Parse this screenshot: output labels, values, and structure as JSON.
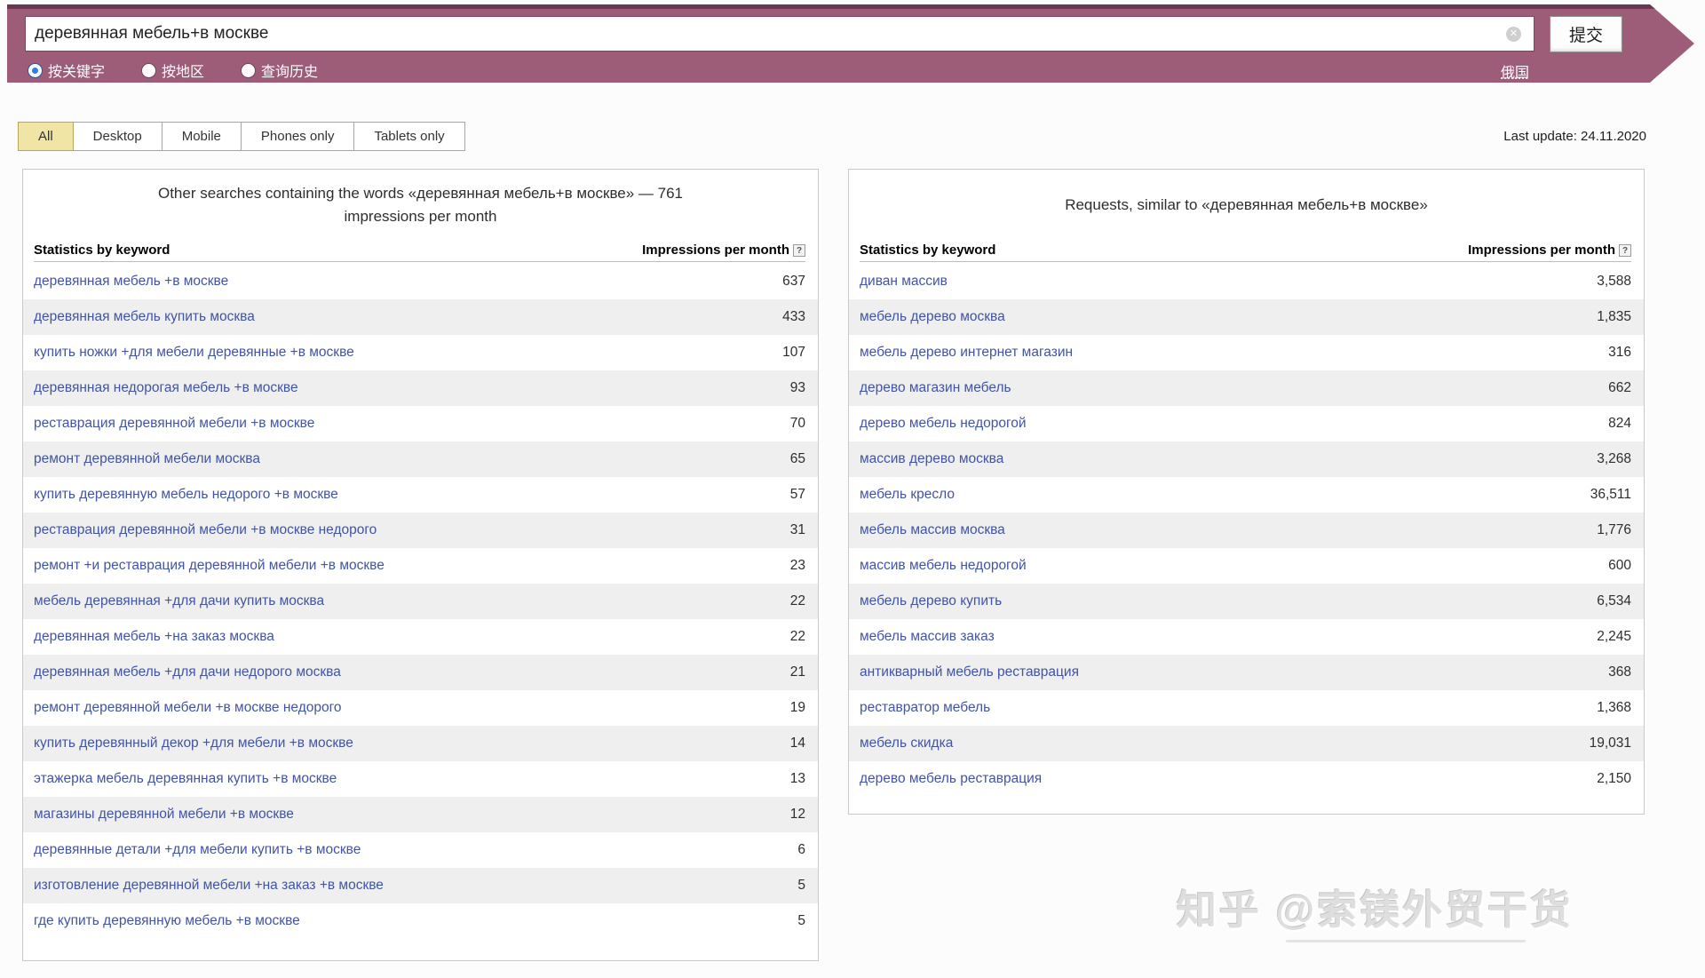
{
  "search": {
    "query": "деревянная мебель+в москве",
    "submit_label": "提交",
    "region_link": "俄国",
    "clear_icon": "✕",
    "modes": [
      {
        "label": "按关键字",
        "selected": true
      },
      {
        "label": "按地区",
        "selected": false
      },
      {
        "label": "查询历史",
        "selected": false
      }
    ]
  },
  "tabs": [
    {
      "label": "All",
      "selected": true
    },
    {
      "label": "Desktop",
      "selected": false
    },
    {
      "label": "Mobile",
      "selected": false
    },
    {
      "label": "Phones only",
      "selected": false
    },
    {
      "label": "Tablets only",
      "selected": false
    }
  ],
  "last_update": "Last update: 24.11.2020",
  "help_icon": "?",
  "left_table": {
    "title": "Other searches containing the words «деревянная мебель+в москве» — 761 impressions per month",
    "col_keyword": "Statistics by keyword",
    "col_impressions": "Impressions per month",
    "rows": [
      {
        "keyword": "деревянная мебель +в москве",
        "impressions": "637"
      },
      {
        "keyword": "деревянная мебель купить москва",
        "impressions": "433"
      },
      {
        "keyword": "купить ножки +для мебели деревянные +в москве",
        "impressions": "107"
      },
      {
        "keyword": "деревянная недорогая мебель +в москве",
        "impressions": "93"
      },
      {
        "keyword": "реставрация деревянной мебели +в москве",
        "impressions": "70"
      },
      {
        "keyword": "ремонт деревянной мебели москва",
        "impressions": "65"
      },
      {
        "keyword": "купить деревянную мебель недорого +в москве",
        "impressions": "57"
      },
      {
        "keyword": "реставрация деревянной мебели +в москве недорого",
        "impressions": "31"
      },
      {
        "keyword": "ремонт +и реставрация деревянной мебели +в москве",
        "impressions": "23"
      },
      {
        "keyword": "мебель деревянная +для дачи купить москва",
        "impressions": "22"
      },
      {
        "keyword": "деревянная мебель +на заказ москва",
        "impressions": "22"
      },
      {
        "keyword": "деревянная мебель +для дачи недорого москва",
        "impressions": "21"
      },
      {
        "keyword": "ремонт деревянной мебели +в москве недорого",
        "impressions": "19"
      },
      {
        "keyword": "купить деревянный декор +для мебели +в москве",
        "impressions": "14"
      },
      {
        "keyword": "этажерка мебель деревянная купить +в москве",
        "impressions": "13"
      },
      {
        "keyword": "магазины деревянной мебели +в москве",
        "impressions": "12"
      },
      {
        "keyword": "деревянные детали +для мебели купить +в москве",
        "impressions": "6"
      },
      {
        "keyword": "изготовление деревянной мебели +на заказ +в москве",
        "impressions": "5"
      },
      {
        "keyword": "где купить деревянную мебель +в москве",
        "impressions": "5"
      }
    ]
  },
  "right_table": {
    "title": "Requests, similar to «деревянная мебель+в москве»",
    "col_keyword": "Statistics by keyword",
    "col_impressions": "Impressions per month",
    "rows": [
      {
        "keyword": "диван массив",
        "impressions": "3,588"
      },
      {
        "keyword": "мебель дерево москва",
        "impressions": "1,835"
      },
      {
        "keyword": "мебель дерево интернет магазин",
        "impressions": "316"
      },
      {
        "keyword": "дерево магазин мебель",
        "impressions": "662"
      },
      {
        "keyword": "дерево мебель недорогой",
        "impressions": "824"
      },
      {
        "keyword": "массив дерево москва",
        "impressions": "3,268"
      },
      {
        "keyword": "мебель кресло",
        "impressions": "36,511"
      },
      {
        "keyword": "мебель массив москва",
        "impressions": "1,776"
      },
      {
        "keyword": "массив мебель недорогой",
        "impressions": "600"
      },
      {
        "keyword": "мебель дерево купить",
        "impressions": "6,534"
      },
      {
        "keyword": "мебель массив заказ",
        "impressions": "2,245"
      },
      {
        "keyword": "антикварный мебель реставрация",
        "impressions": "368"
      },
      {
        "keyword": "реставратор мебель",
        "impressions": "1,368"
      },
      {
        "keyword": "мебель скидка",
        "impressions": "19,031"
      },
      {
        "keyword": "дерево мебель реставрация",
        "impressions": "2,150"
      }
    ]
  },
  "watermark": "知乎 @索镁外贸干货",
  "colors": {
    "bar": "#9d5c78",
    "bar_border": "#693850",
    "selected_tab": "#f1e5a5",
    "link": "#4154a6",
    "radio_on": "#2d7fe8",
    "alt_row": "#efefef"
  }
}
